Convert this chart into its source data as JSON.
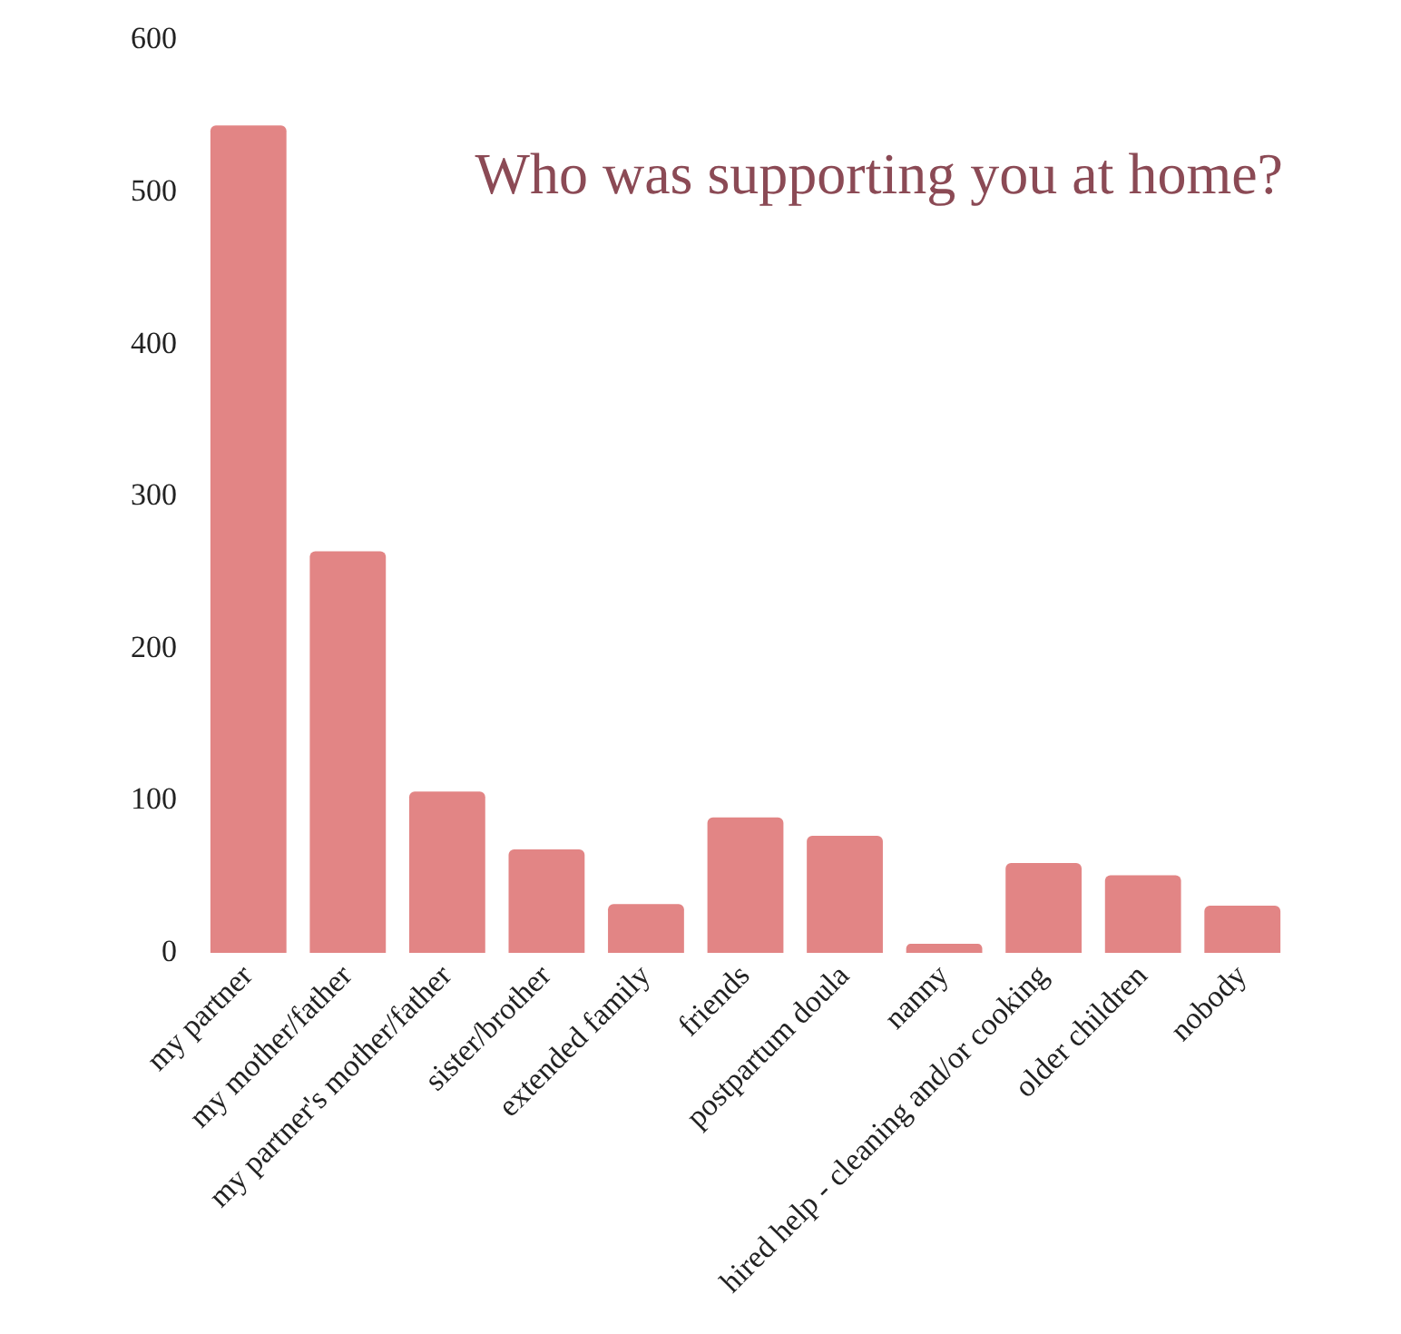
{
  "chart_data": {
    "type": "bar",
    "title": "Who was supporting you at home?",
    "categories": [
      "my partner",
      "my mother/father",
      "my partner's mother/father",
      "sister/brother",
      "extended family",
      "friends",
      "postpartum doula",
      "nanny",
      "hired help - cleaning and/or cooking",
      "older children",
      "nobody"
    ],
    "values": [
      544,
      264,
      106,
      68,
      32,
      89,
      77,
      6,
      59,
      51,
      31
    ],
    "color": "#e28585",
    "ylim": [
      0,
      600
    ],
    "yticks": [
      0,
      100,
      200,
      300,
      400,
      500,
      600
    ],
    "grid": false,
    "legend": false
  }
}
